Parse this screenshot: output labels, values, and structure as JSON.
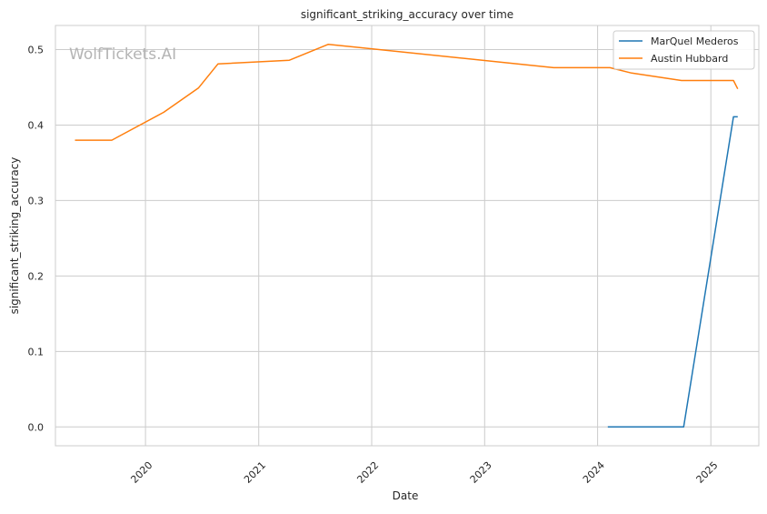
{
  "chart_data": {
    "type": "line",
    "title": "significant_striking_accuracy over time",
    "xlabel": "Date",
    "ylabel": "significant_striking_accuracy",
    "watermark": "WolfTickets.AI",
    "x_ticks": [
      "2020",
      "2021",
      "2022",
      "2023",
      "2024",
      "2025"
    ],
    "y_ticks": [
      "0.0",
      "0.1",
      "0.2",
      "0.3",
      "0.4",
      "0.5"
    ],
    "xlim": [
      "2019-03-16",
      "2025-06-05"
    ],
    "ylim": [
      -0.025,
      0.532
    ],
    "grid": true,
    "legend_position": "top-right",
    "series": [
      {
        "name": "MarQuel Mederos",
        "color": "#1f77b4",
        "points": [
          {
            "x": "2024-02-03",
            "y": 0.0
          },
          {
            "x": "2024-10-05",
            "y": 0.0
          },
          {
            "x": "2025-03-15",
            "y": 0.411
          },
          {
            "x": "2025-03-29",
            "y": 0.411
          }
        ]
      },
      {
        "name": "Austin Hubbard",
        "color": "#ff7f0e",
        "points": [
          {
            "x": "2019-05-18",
            "y": 0.38
          },
          {
            "x": "2019-09-14",
            "y": 0.38
          },
          {
            "x": "2020-02-29",
            "y": 0.417
          },
          {
            "x": "2020-06-20",
            "y": 0.449
          },
          {
            "x": "2020-08-22",
            "y": 0.481
          },
          {
            "x": "2021-04-10",
            "y": 0.486
          },
          {
            "x": "2021-08-14",
            "y": 0.507
          },
          {
            "x": "2023-08-12",
            "y": 0.476
          },
          {
            "x": "2024-02-10",
            "y": 0.476
          },
          {
            "x": "2024-04-20",
            "y": 0.469
          },
          {
            "x": "2024-09-28",
            "y": 0.459
          },
          {
            "x": "2025-03-15",
            "y": 0.459
          },
          {
            "x": "2025-03-29",
            "y": 0.448
          }
        ]
      }
    ]
  }
}
